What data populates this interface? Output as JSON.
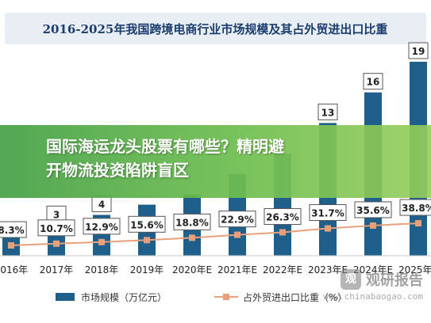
{
  "banner": {
    "line1": "国际海运龙头股票有哪些？精明避",
    "line2": "开物流投资陷阱盲区"
  },
  "watermark": {
    "name": "观研报告",
    "url": "www.chinabaogao.com",
    "icon": "观"
  },
  "colors": {
    "bar": "#1f5f8b",
    "line": "#e8a07a",
    "title": "#1a3d6e",
    "title_bg": "#e9eef5"
  },
  "chart_data": {
    "type": "bar",
    "title": "2016-2025年我国跨境电商行业市场规模及其占外贸进出口比重",
    "categories": [
      "2016年",
      "2017年",
      "2018年",
      "2019年",
      "2020年E",
      "2021年E",
      "2022年E",
      "2023年E",
      "2024年E",
      "2025年E"
    ],
    "series": [
      {
        "name": "市场规模（万亿元）",
        "type": "bar",
        "values": [
          2,
          3,
          4,
          5,
          6,
          8,
          10,
          13,
          16,
          19
        ],
        "labels": [
          "",
          "3",
          "4",
          "",
          "",
          "",
          "",
          "13",
          "16",
          "19"
        ]
      },
      {
        "name": "占外贸进出口比重（%）",
        "type": "line",
        "values": [
          8.3,
          10.7,
          12.9,
          15.6,
          18.8,
          22.9,
          26.3,
          31.7,
          35.6,
          38.8
        ],
        "labels": [
          "8.3%",
          "10.7%",
          "12.9%",
          "15.6%",
          "18.8%",
          "22.9%",
          "26.3%",
          "31.7%",
          "35.6%",
          "38.8%"
        ]
      }
    ],
    "legend_position": "bottom",
    "grid": false
  }
}
